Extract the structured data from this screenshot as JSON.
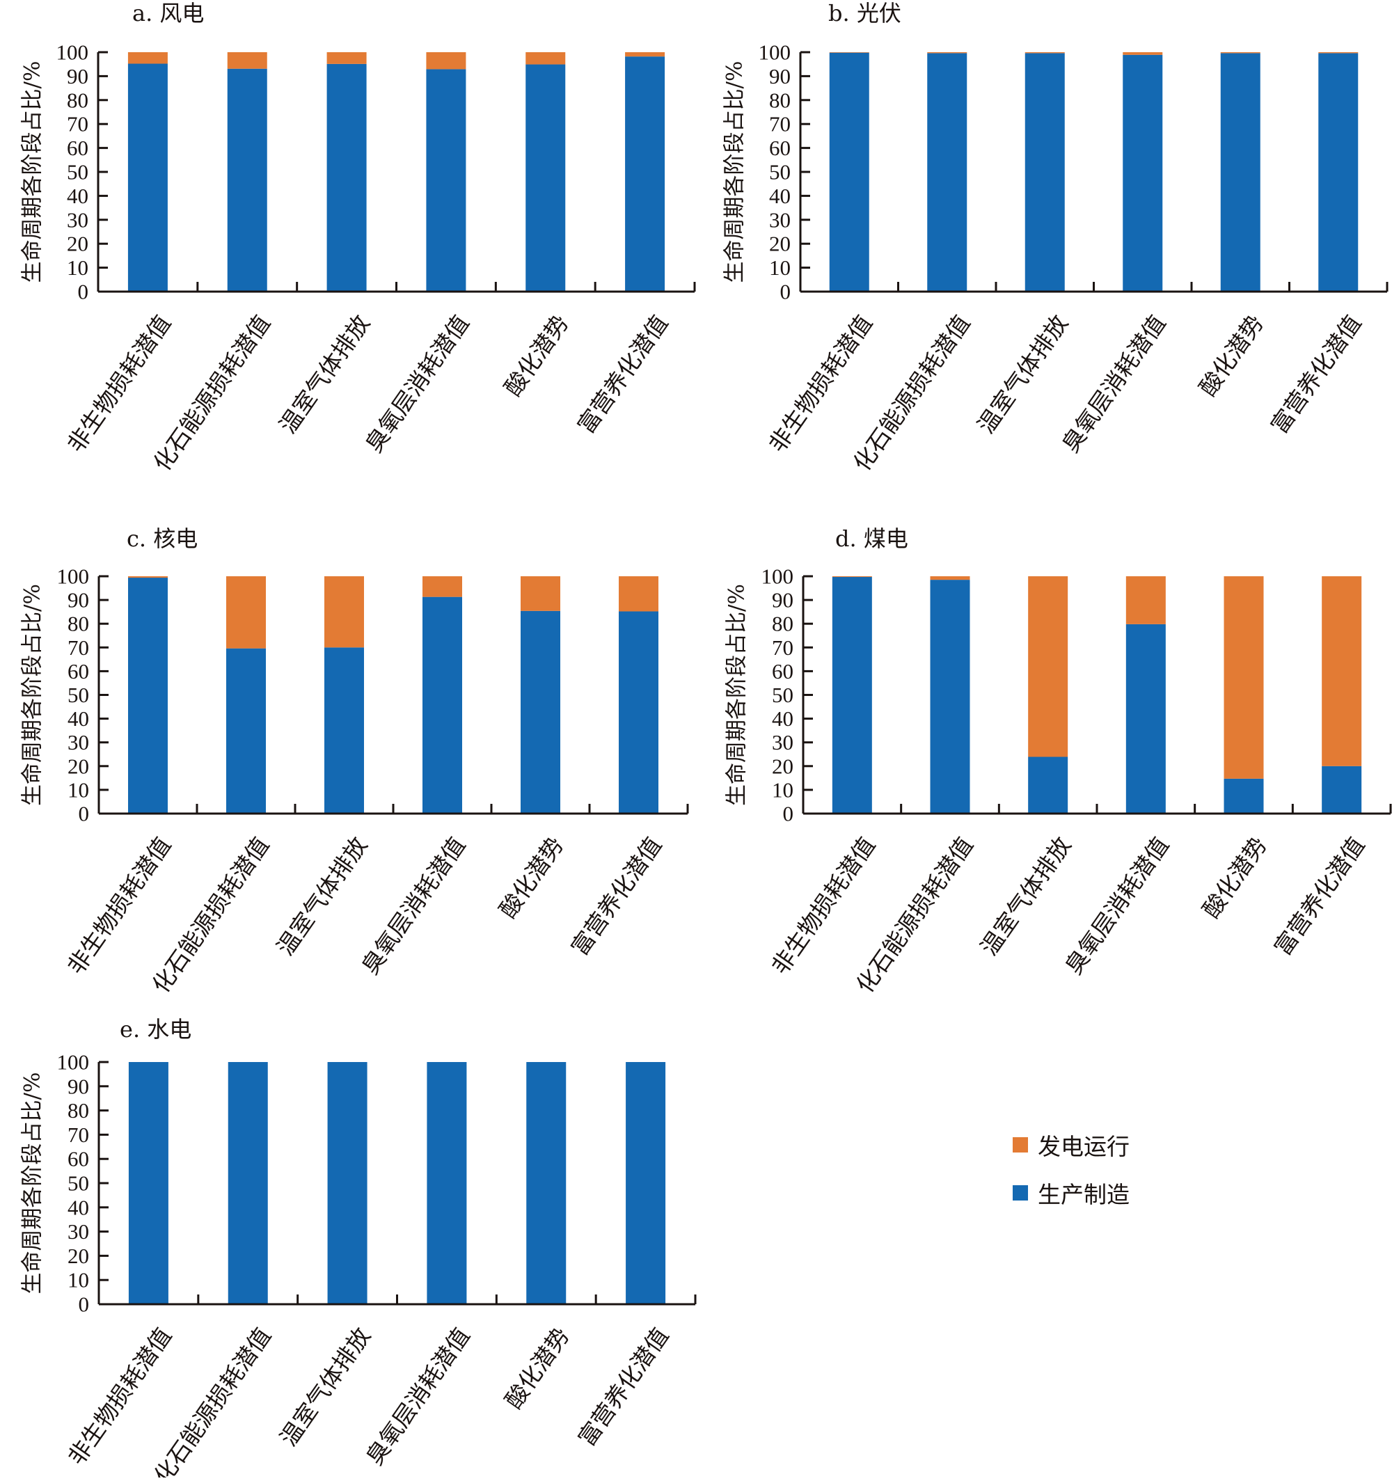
{
  "colors": {
    "operation": "#E37B34",
    "manufacturing": "#1469B2",
    "axis": "#1a1311"
  },
  "legend": {
    "items": [
      {
        "label": "发电运行",
        "color": "#E37B34"
      },
      {
        "label": "生产制造",
        "color": "#1469B2"
      }
    ]
  },
  "chart_data": [
    {
      "type": "bar",
      "stacked": true,
      "title": "a. 风电",
      "ylabel": "生命周期各阶段占比/%",
      "xlabel": "",
      "ylim": [
        0,
        100
      ],
      "yticks": [
        "0",
        "10",
        "20",
        "30",
        "40",
        "50",
        "60",
        "70",
        "80",
        "90",
        "100"
      ],
      "categories": [
        "非生物损耗潜值",
        "化石能源损耗潜值",
        "温室气体排放",
        "臭氧层消耗潜值",
        "酸化潜势",
        "富营养化潜值"
      ],
      "series": [
        {
          "name": "生产制造",
          "values": [
            95.2,
            93.1,
            95.1,
            92.9,
            94.9,
            98.2
          ]
        },
        {
          "name": "发电运行",
          "values": [
            4.8,
            6.9,
            4.9,
            7.1,
            5.1,
            1.8
          ]
        }
      ]
    },
    {
      "type": "bar",
      "stacked": true,
      "title": "b. 光伏",
      "ylabel": "生命周期各阶段占比/%",
      "xlabel": "",
      "ylim": [
        0,
        100
      ],
      "yticks": [
        "0",
        "10",
        "20",
        "30",
        "40",
        "50",
        "60",
        "70",
        "80",
        "90",
        "100"
      ],
      "categories": [
        "非生物损耗潜值",
        "化石能源损耗潜值",
        "温室气体排放",
        "臭氧层消耗潜值",
        "酸化潜势",
        "富营养化潜值"
      ],
      "series": [
        {
          "name": "生产制造",
          "values": [
            99.8,
            99.6,
            99.6,
            98.9,
            99.6,
            99.6
          ]
        },
        {
          "name": "发电运行",
          "values": [
            0.2,
            0.4,
            0.4,
            1.1,
            0.4,
            0.4
          ]
        }
      ]
    },
    {
      "type": "bar",
      "stacked": true,
      "title": "c. 核电",
      "ylabel": "生命周期各阶段占比/%",
      "xlabel": "",
      "ylim": [
        0,
        100
      ],
      "yticks": [
        "0",
        "10",
        "20",
        "30",
        "40",
        "50",
        "60",
        "70",
        "80",
        "90",
        "100"
      ],
      "categories": [
        "非生物损耗潜值",
        "化石能源损耗潜值",
        "温室气体排放",
        "臭氧层消耗潜值",
        "酸化潜势",
        "富营养化潜值"
      ],
      "series": [
        {
          "name": "生产制造",
          "values": [
            99.4,
            69.6,
            70.0,
            91.3,
            85.4,
            85.2
          ]
        },
        {
          "name": "发电运行",
          "values": [
            0.6,
            30.4,
            30.0,
            8.7,
            14.6,
            14.8
          ]
        }
      ]
    },
    {
      "type": "bar",
      "stacked": true,
      "title": "d. 煤电",
      "ylabel": "生命周期各阶段占比/%",
      "xlabel": "",
      "ylim": [
        0,
        100
      ],
      "yticks": [
        "0",
        "10",
        "20",
        "30",
        "40",
        "50",
        "60",
        "70",
        "80",
        "90",
        "100"
      ],
      "categories": [
        "非生物损耗潜值",
        "化石能源损耗潜值",
        "温室气体排放",
        "臭氧层消耗潜值",
        "酸化潜势",
        "富营养化潜值"
      ],
      "series": [
        {
          "name": "生产制造",
          "values": [
            99.7,
            98.5,
            23.9,
            79.8,
            14.7,
            20.0
          ]
        },
        {
          "name": "发电运行",
          "values": [
            0.3,
            1.5,
            76.1,
            20.2,
            85.3,
            80.0
          ]
        }
      ]
    },
    {
      "type": "bar",
      "stacked": true,
      "title": "e. 水电",
      "ylabel": "生命周期各阶段占比/%",
      "xlabel": "",
      "ylim": [
        0,
        100
      ],
      "yticks": [
        "0",
        "10",
        "20",
        "30",
        "40",
        "50",
        "60",
        "70",
        "80",
        "90",
        "100"
      ],
      "categories": [
        "非生物损耗潜值",
        "化石能源损耗潜值",
        "温室气体排放",
        "臭氧层消耗潜值",
        "酸化潜势",
        "富营养化潜值"
      ],
      "series": [
        {
          "name": "生产制造",
          "values": [
            100,
            100,
            100,
            100,
            100,
            100
          ]
        },
        {
          "name": "发电运行",
          "values": [
            0,
            0,
            0,
            0,
            0,
            0
          ]
        }
      ]
    }
  ]
}
